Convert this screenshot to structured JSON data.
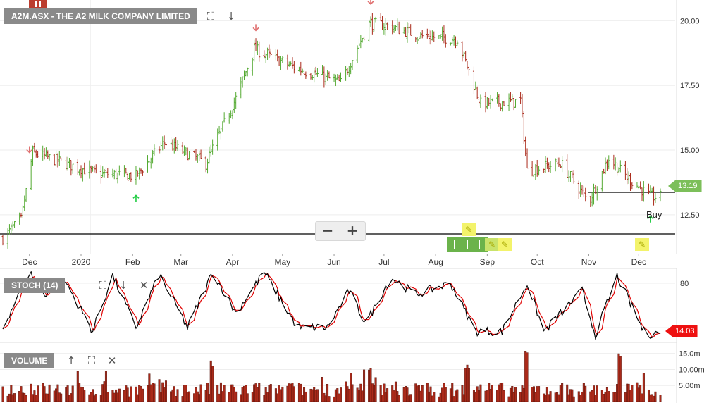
{
  "main": {
    "title": "A2M.ASX - THE A2 MILK COMPANY LIMITED",
    "last_price_label": "13.19",
    "buy_label": "Buy",
    "y_ticks": [
      "20.00",
      "17.50",
      "15.00",
      "12.50"
    ],
    "x_ticks": [
      "Dec",
      "2020",
      "Feb",
      "Mar",
      "Apr",
      "May",
      "Jun",
      "Jul",
      "Aug",
      "Sep",
      "Oct",
      "Nov",
      "Dec"
    ],
    "zoom_out_label": "−",
    "zoom_in_label": "+"
  },
  "stoch": {
    "title": "STOCH (14)",
    "value_label": "14.03",
    "y_ticks": [
      "80",
      "20"
    ]
  },
  "volume": {
    "title": "VOLUME",
    "y_ticks": [
      "15.0m",
      "10.00m",
      "5.00m"
    ]
  },
  "colors": {
    "up": "#55aa33",
    "down": "#aa2a1a",
    "stoch_k": "#000000",
    "stoch_d": "#e00000",
    "volume_fill": "#aa2a1a",
    "price_tag": "#7cbf5a",
    "stoch_tag": "#ee1111",
    "arrow_up": "#22cc44",
    "arrow_down": "#e07070"
  },
  "icons": {
    "expand": "expand-icon",
    "down_arrow": "arrow-down-icon",
    "up_arrow": "arrow-up-icon",
    "close": "close-icon",
    "pencil": "pencil-icon"
  },
  "chart_data": [
    {
      "type": "ohlc",
      "title": "A2M.ASX - THE A2 MILK COMPANY LIMITED",
      "x_range": [
        "Nov 2019",
        "Dec 2020"
      ],
      "ylim": [
        11.0,
        20.8
      ],
      "grid": true,
      "key_points": [
        {
          "date": "2019-11-15",
          "close": 11.6
        },
        {
          "date": "2019-11-26",
          "close": 12.3
        },
        {
          "date": "2019-12-03",
          "close": 14.9
        },
        {
          "date": "2020-01-10",
          "close": 14.1
        },
        {
          "date": "2020-02-03",
          "close": 14.0
        },
        {
          "date": "2020-02-20",
          "close": 15.3
        },
        {
          "date": "2020-03-16",
          "close": 14.5
        },
        {
          "date": "2020-04-03",
          "close": 17.0
        },
        {
          "date": "2020-04-14",
          "close": 18.9
        },
        {
          "date": "2020-05-08",
          "close": 18.2
        },
        {
          "date": "2020-06-05",
          "close": 17.6
        },
        {
          "date": "2020-06-22",
          "close": 19.9
        },
        {
          "date": "2020-07-03",
          "close": 19.8
        },
        {
          "date": "2020-07-24",
          "close": 19.4
        },
        {
          "date": "2020-08-14",
          "close": 19.3
        },
        {
          "date": "2020-08-28",
          "close": 16.8
        },
        {
          "date": "2020-09-21",
          "close": 16.9
        },
        {
          "date": "2020-09-25",
          "close": 14.2
        },
        {
          "date": "2020-10-15",
          "close": 14.5
        },
        {
          "date": "2020-11-01",
          "close": 13.0
        },
        {
          "date": "2020-11-13",
          "close": 14.7
        },
        {
          "date": "2020-11-23",
          "close": 14.0
        },
        {
          "date": "2020-12-08",
          "close": 13.2
        },
        {
          "date": "2020-12-14",
          "close": 13.19
        }
      ],
      "horizontal_lines": [
        11.0,
        12.95
      ],
      "sell_arrows": [
        "2019-12-01",
        "2020-04-15",
        "2020-06-23"
      ],
      "buy_arrows": [
        "2020-02-03",
        "2020-12-08"
      ],
      "last_value": 13.19
    },
    {
      "type": "line",
      "title": "STOCH (14)",
      "ylim": [
        0,
        100
      ],
      "levels": [
        80,
        20
      ],
      "series": [
        {
          "color": "#000000",
          "key_points": [
            {
              "date": "2019-11-15",
              "k": 20
            },
            {
              "date": "2019-12-01",
              "k": 95
            },
            {
              "date": "2019-12-10",
              "k": 65
            },
            {
              "date": "2019-12-22",
              "k": 85
            },
            {
              "date": "2020-01-08",
              "k": 15
            },
            {
              "date": "2020-01-20",
              "k": 90
            },
            {
              "date": "2020-02-03",
              "k": 20
            },
            {
              "date": "2020-02-17",
              "k": 92
            },
            {
              "date": "2020-03-05",
              "k": 20
            },
            {
              "date": "2020-03-20",
              "k": 95
            },
            {
              "date": "2020-04-03",
              "k": 40
            },
            {
              "date": "2020-04-20",
              "k": 95
            },
            {
              "date": "2020-05-10",
              "k": 20
            },
            {
              "date": "2020-05-28",
              "k": 20
            },
            {
              "date": "2020-06-10",
              "k": 70
            },
            {
              "date": "2020-06-20",
              "k": 25
            },
            {
              "date": "2020-07-05",
              "k": 88
            },
            {
              "date": "2020-07-20",
              "k": 65
            },
            {
              "date": "2020-08-10",
              "k": 80
            },
            {
              "date": "2020-08-25",
              "k": 15
            },
            {
              "date": "2020-09-10",
              "k": 15
            },
            {
              "date": "2020-09-25",
              "k": 80
            },
            {
              "date": "2020-10-05",
              "k": 15
            },
            {
              "date": "2020-10-28",
              "k": 70
            },
            {
              "date": "2020-11-05",
              "k": 10
            },
            {
              "date": "2020-11-18",
              "k": 90
            },
            {
              "date": "2020-12-05",
              "k": 10
            },
            {
              "date": "2020-12-14",
              "k": 14
            }
          ]
        }
      ],
      "last_value": 14.03
    },
    {
      "type": "bar",
      "title": "VOLUME",
      "y_unit": "m",
      "ylim": [
        0,
        18
      ],
      "key_points": [
        {
          "date": "2019-12-01",
          "volume": 6
        },
        {
          "date": "2020-03-20",
          "volume": 13
        },
        {
          "date": "2020-06-22",
          "volume": 12
        },
        {
          "date": "2020-08-20",
          "volume": 12
        },
        {
          "date": "2020-09-25",
          "volume": 16
        },
        {
          "date": "2020-11-20",
          "volume": 15
        },
        {
          "date": "2020-12-05",
          "volume": 10
        }
      ]
    }
  ]
}
